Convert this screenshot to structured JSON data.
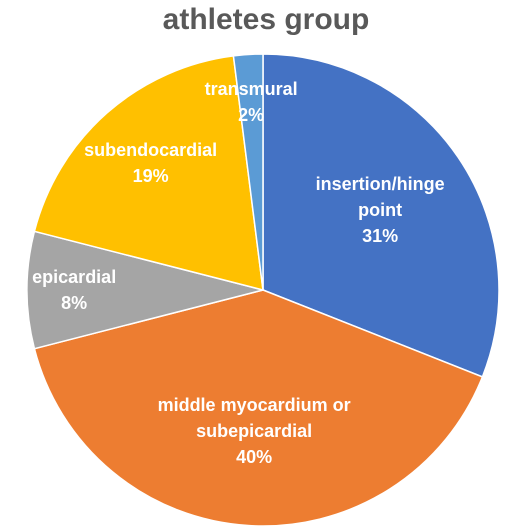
{
  "chart_data": {
    "type": "pie",
    "title": "athletes group",
    "categories": [
      "insertion/hinge point",
      "middle myocardium or subepicardial",
      "epicardial",
      "subendocardial",
      "transmural"
    ],
    "values": [
      31,
      40,
      8,
      19,
      2
    ],
    "value_labels": [
      "31%",
      "40%",
      "8%",
      "19%",
      "2%"
    ],
    "colors": [
      "#4472c4",
      "#ed7d31",
      "#a5a5a5",
      "#ffc000",
      "#5b9bd5"
    ]
  }
}
